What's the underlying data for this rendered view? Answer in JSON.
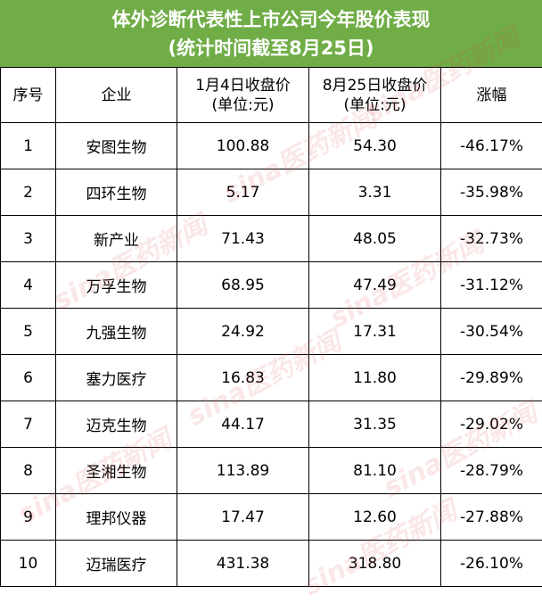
{
  "title": {
    "line1": "体外诊断代表性上市公司今年股价表现",
    "line2": "(统计时间截至8月25日)"
  },
  "headers": {
    "seq": "序号",
    "company": "企业",
    "jan4_line1": "1月4日收盘价",
    "jan4_line2": "(单位:元)",
    "aug25_line1": "8月25日收盘价",
    "aug25_line2": "(单位:元)",
    "change": "涨幅"
  },
  "rows": [
    {
      "seq": "1",
      "company": "安图生物",
      "jan4": "100.88",
      "aug25": "54.30",
      "change": "-46.17%"
    },
    {
      "seq": "2",
      "company": "四环生物",
      "jan4": "5.17",
      "aug25": "3.31",
      "change": "-35.98%"
    },
    {
      "seq": "3",
      "company": "新产业",
      "jan4": "71.43",
      "aug25": "48.05",
      "change": "-32.73%"
    },
    {
      "seq": "4",
      "company": "万孚生物",
      "jan4": "68.95",
      "aug25": "47.49",
      "change": "-31.12%"
    },
    {
      "seq": "5",
      "company": "九强生物",
      "jan4": "24.92",
      "aug25": "17.31",
      "change": "-30.54%"
    },
    {
      "seq": "6",
      "company": "塞力医疗",
      "jan4": "16.83",
      "aug25": "11.80",
      "change": "-29.89%"
    },
    {
      "seq": "7",
      "company": "迈克生物",
      "jan4": "44.17",
      "aug25": "31.35",
      "change": "-29.02%"
    },
    {
      "seq": "8",
      "company": "圣湘生物",
      "jan4": "113.89",
      "aug25": "81.10",
      "change": "-28.79%"
    },
    {
      "seq": "9",
      "company": "理邦仪器",
      "jan4": "17.47",
      "aug25": "12.60",
      "change": "-27.88%"
    },
    {
      "seq": "10",
      "company": "迈瑞医疗",
      "jan4": "431.38",
      "aug25": "318.80",
      "change": "-26.10%"
    }
  ],
  "watermark": "sina医药新闻",
  "colors": {
    "header_bg": "#70ad47",
    "change_text": "#548235"
  }
}
